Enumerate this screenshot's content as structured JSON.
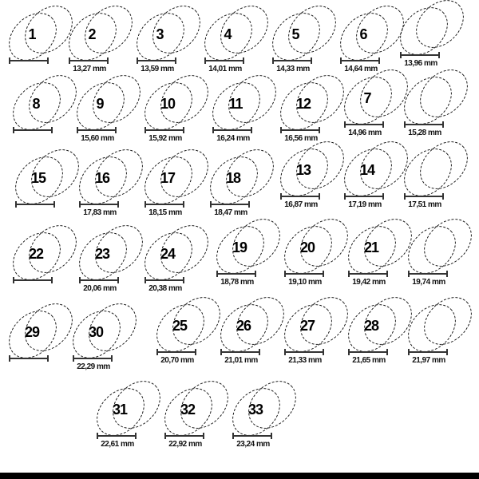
{
  "items": [
    {
      "size": "1",
      "mm": ""
    },
    {
      "size": "2",
      "mm": "13,27 mm"
    },
    {
      "size": "3",
      "mm": "13,59 mm"
    },
    {
      "size": "4",
      "mm": "14,01 mm"
    },
    {
      "size": "5",
      "mm": "14,33 mm"
    },
    {
      "size": "6",
      "mm": "14,64 mm"
    },
    {
      "size": "",
      "mm": "13,96 mm"
    },
    {
      "size": "8",
      "mm": ""
    },
    {
      "size": "9",
      "mm": "15,60 mm"
    },
    {
      "size": "10",
      "mm": "15,92 mm"
    },
    {
      "size": "11",
      "mm": "16,24 mm"
    },
    {
      "size": "12",
      "mm": "16,56 mm"
    },
    {
      "size": "7",
      "mm": "14,96 mm"
    },
    {
      "size": "",
      "mm": "15,28 mm"
    },
    {
      "size": "15",
      "mm": ""
    },
    {
      "size": "16",
      "mm": "17,83 mm"
    },
    {
      "size": "17",
      "mm": "18,15 mm"
    },
    {
      "size": "18",
      "mm": "18,47 mm"
    },
    {
      "size": "13",
      "mm": "16,87 mm"
    },
    {
      "size": "14",
      "mm": "17,19 mm"
    },
    {
      "size": "",
      "mm": "17,51 mm"
    },
    {
      "size": "22",
      "mm": ""
    },
    {
      "size": "23",
      "mm": "20,06 mm"
    },
    {
      "size": "24",
      "mm": "20,38 mm"
    },
    {
      "size": "19",
      "mm": "18,78 mm"
    },
    {
      "size": "20",
      "mm": "19,10 mm"
    },
    {
      "size": "21",
      "mm": "19,42 mm"
    },
    {
      "size": "",
      "mm": "19,74 mm"
    },
    {
      "size": "29",
      "mm": ""
    },
    {
      "size": "30",
      "mm": "22,29 mm"
    },
    {
      "size": "25",
      "mm": "20,70 mm"
    },
    {
      "size": "26",
      "mm": "21,01 mm"
    },
    {
      "size": "27",
      "mm": "21,33 mm"
    },
    {
      "size": "28",
      "mm": "21,65 mm"
    },
    {
      "size": "",
      "mm": "21,97 mm"
    },
    {
      "size": "31",
      "mm": "22,61 mm"
    },
    {
      "size": "32",
      "mm": "22,92 mm"
    },
    {
      "size": "33",
      "mm": "23,24 mm"
    }
  ]
}
